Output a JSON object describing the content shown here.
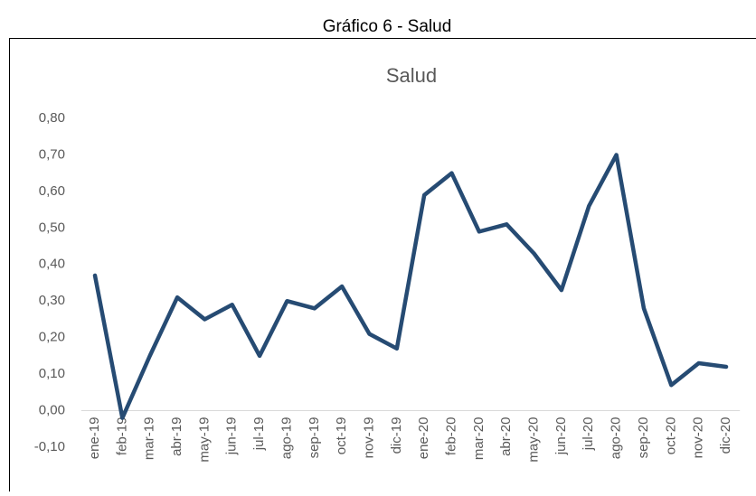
{
  "heading": "Gráfico  6 - Salud",
  "chart_data": {
    "type": "line",
    "title": "Salud",
    "categories": [
      "ene-19",
      "feb-19",
      "mar-19",
      "abr-19",
      "may-19",
      "jun-19",
      "jul-19",
      "ago-19",
      "sep-19",
      "oct-19",
      "nov-19",
      "dic-19",
      "ene-20",
      "feb-20",
      "mar-20",
      "abr-20",
      "may-20",
      "jun-20",
      "jul-20",
      "ago-20",
      "sep-20",
      "oct-20",
      "nov-20",
      "dic-20"
    ],
    "values": [
      0.37,
      -0.02,
      0.15,
      0.31,
      0.25,
      0.29,
      0.15,
      0.3,
      0.28,
      0.34,
      0.21,
      0.17,
      0.59,
      0.65,
      0.49,
      0.51,
      0.43,
      0.33,
      0.56,
      0.7,
      0.28,
      0.07,
      0.13,
      0.12
    ],
    "color": "#264b73",
    "ylim": [
      -0.1,
      0.8
    ],
    "yticks": [
      {
        "value": -0.1,
        "label": "-0,10"
      },
      {
        "value": 0,
        "label": "0,00"
      },
      {
        "value": 0.1,
        "label": "0,10"
      },
      {
        "value": 0.2,
        "label": "0,20"
      },
      {
        "value": 0.3,
        "label": "0,30"
      },
      {
        "value": 0.4,
        "label": "0,40"
      },
      {
        "value": 0.5,
        "label": "0,50"
      },
      {
        "value": 0.6,
        "label": "0,60"
      },
      {
        "value": 0.7,
        "label": "0,70"
      },
      {
        "value": 0.8,
        "label": "0,80"
      }
    ],
    "grid": false
  }
}
